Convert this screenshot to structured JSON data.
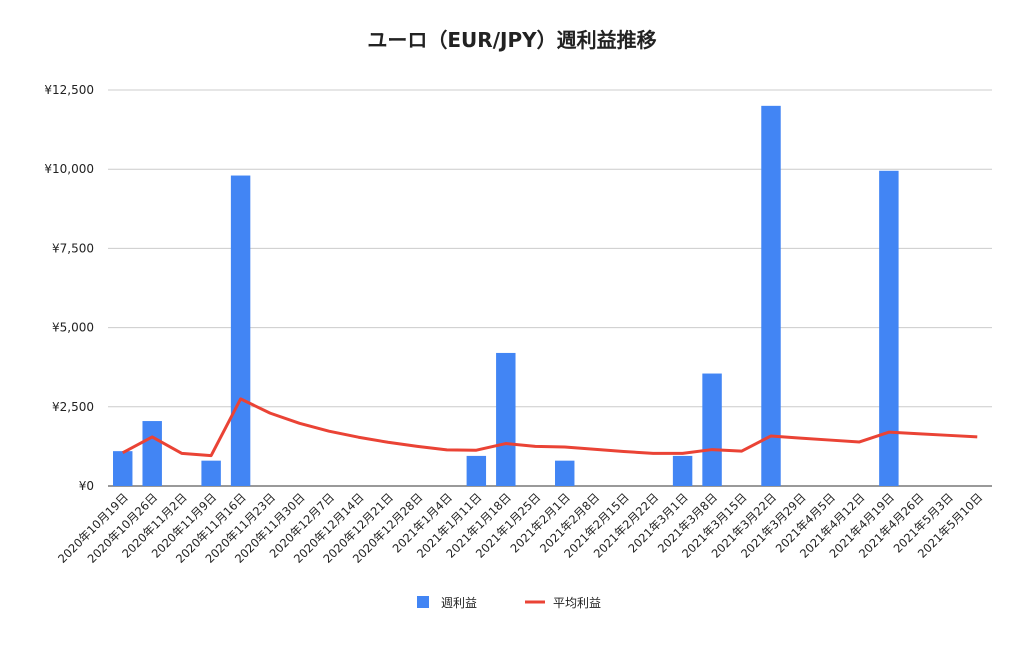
{
  "chart_data": {
    "type": "bar-line",
    "title": "ユーロ（EUR/JPY）週利益推移",
    "categories": [
      "2020年10月19日",
      "2020年10月26日",
      "2020年11月2日",
      "2020年11月9日",
      "2020年11月16日",
      "2020年11月23日",
      "2020年11月30日",
      "2020年12月7日",
      "2020年12月14日",
      "2020年12月21日",
      "2020年12月28日",
      "2021年1月4日",
      "2021年1月11日",
      "2021年1月18日",
      "2021年1月25日",
      "2021年2月1日",
      "2021年2月8日",
      "2021年2月15日",
      "2021年2月22日",
      "2021年3月1日",
      "2021年3月8日",
      "2021年3月15日",
      "2021年3月22日",
      "2021年3月29日",
      "2021年4月5日",
      "2021年4月12日",
      "2021年4月19日",
      "2021年4月26日",
      "2021年5月3日",
      "2021年5月10日"
    ],
    "series": [
      {
        "name": "週利益",
        "type": "bar",
        "color": "#4285f4",
        "values": [
          1100,
          2050,
          0,
          800,
          9800,
          0,
          0,
          0,
          0,
          0,
          0,
          0,
          950,
          4200,
          0,
          800,
          0,
          0,
          0,
          950,
          3550,
          0,
          12000,
          0,
          0,
          0,
          9950,
          0,
          0,
          0
        ]
      },
      {
        "name": "平均利益",
        "type": "line",
        "color": "#ea4335",
        "values": [
          1050,
          1550,
          1030,
          960,
          2750,
          2300,
          1980,
          1730,
          1540,
          1380,
          1250,
          1140,
          1130,
          1340,
          1250,
          1230,
          1160,
          1090,
          1030,
          1030,
          1150,
          1100,
          1580,
          1510,
          1450,
          1390,
          1700,
          1650,
          1600,
          1550
        ]
      }
    ],
    "ylim": [
      0,
      12500
    ],
    "yticks": [
      {
        "value": 0,
        "label": "¥0"
      },
      {
        "value": 2500,
        "label": "¥2,500"
      },
      {
        "value": 5000,
        "label": "¥5,000"
      },
      {
        "value": 7500,
        "label": "¥7,500"
      },
      {
        "value": 10000,
        "label": "¥10,000"
      },
      {
        "value": 12500,
        "label": "¥12,500"
      }
    ],
    "grid": true,
    "legend": "bottom"
  }
}
